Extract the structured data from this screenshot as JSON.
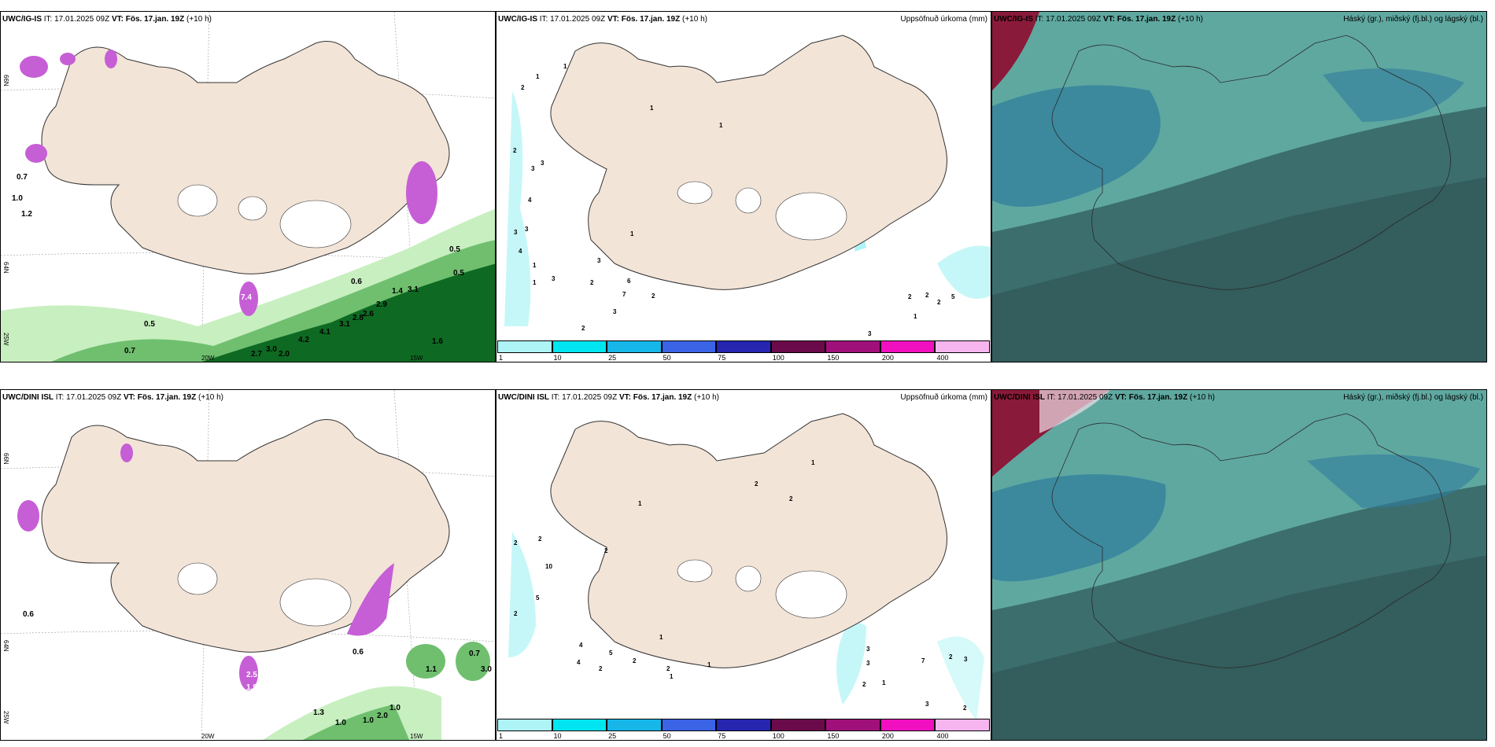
{
  "rows": [
    {
      "model": "UWC/IG-IS",
      "it_label": "IT:",
      "it": "17.01.2025 09Z",
      "vt_label": "VT:",
      "vt": "Fös. 17.jan. 19Z",
      "lead": "(+10 h)",
      "wind_labels": [
        "0.7",
        "1.0",
        "1.2",
        "0.5",
        "0.5",
        "0.6",
        "1.4",
        "3.1",
        "2.9",
        "2.6",
        "3.1",
        "2.8",
        "4.1",
        "4.2",
        "3.0",
        "2.7",
        "2.0",
        "1.6",
        "0.5",
        "0.7",
        "7.4"
      ],
      "accum_labels": [
        "1",
        "2",
        "1",
        "2",
        "3",
        "3",
        "4",
        "3",
        "3",
        "4",
        "1",
        "1",
        "3",
        "2",
        "3",
        "6",
        "7",
        "2",
        "1",
        "1",
        "1",
        "3",
        "2",
        "1",
        "3",
        "2",
        "2",
        "5",
        "1",
        "3",
        "2"
      ]
    },
    {
      "model": "UWC/DINI ISL",
      "it_label": "IT:",
      "it": "17.01.2025 09Z",
      "vt_label": "VT:",
      "vt": "Fös. 17.jan. 19Z",
      "lead": "(+10 h)",
      "wind_labels": [
        "0.6",
        "2.5",
        "1.9",
        "0.6",
        "1.3",
        "1.0",
        "2.0",
        "1.0",
        "0.7",
        "1.0",
        "3.0",
        "1.1"
      ],
      "accum_labels": [
        "1",
        "2",
        "2",
        "1",
        "2",
        "2",
        "10",
        "2",
        "5",
        "2",
        "4",
        "5",
        "2",
        "2",
        "1",
        "1",
        "1",
        "2",
        "4",
        "3",
        "3",
        "2",
        "1",
        "7",
        "2",
        "3",
        "3",
        "2"
      ]
    }
  ],
  "accum_title": "Uppsöfnuð úrkoma (mm)",
  "cloud_title": "Háský (gr.), miðský (fj.bl.) og lágský (bl.)",
  "grid_labels": {
    "lat_top": "66N",
    "lat_mid": "64N",
    "lon_left": "25W",
    "lon_mid": "20W",
    "lon_right": "15W"
  },
  "colorbar": {
    "labels": [
      "1",
      "10",
      "25",
      "50",
      "75",
      "100",
      "150",
      "200",
      "400"
    ],
    "colors": [
      "#aef3f5",
      "#00e5f0",
      "#16b6e8",
      "#3a63e5",
      "#2525b0",
      "#6a0a4a",
      "#a0107a",
      "#f010c0",
      "#f7b5f0"
    ]
  },
  "colors": {
    "land": "#f3e4d8",
    "coast": "#333333",
    "precip_light": "#c8efc0",
    "precip_mid": "#6fbf6f",
    "precip_dark": "#0e6a22",
    "snow": "#c65fd6",
    "accum_cyan": "#aef3f5",
    "cloud_low": "#3c6e6e",
    "cloud_mid": "#2e7c9c",
    "cloud_high": "#5fa8a0",
    "cloud_dark": "#2e5252"
  }
}
